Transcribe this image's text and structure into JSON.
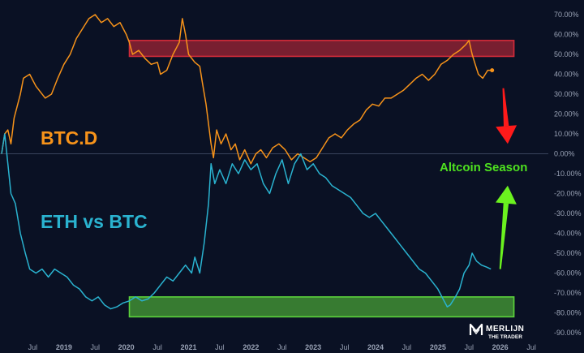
{
  "chart_data": {
    "type": "line",
    "title": "",
    "xlabel": "",
    "ylabel": "",
    "ylim": [
      -90,
      70
    ],
    "y_axis_side": "right",
    "grid": false,
    "y_ticks": [
      "70.00%",
      "60.00%",
      "50.00%",
      "40.00%",
      "30.00%",
      "20.00%",
      "10.00%",
      "0.00%",
      "-10.00%",
      "-20.00%",
      "-30.00%",
      "-40.00%",
      "-50.00%",
      "-60.00%",
      "-70.00%",
      "-80.00%",
      "-90.00%"
    ],
    "x_ticks": [
      {
        "label": "Jul",
        "x": 2018.5,
        "year": false
      },
      {
        "label": "2019",
        "x": 2019.0,
        "year": true
      },
      {
        "label": "Jul",
        "x": 2019.5,
        "year": false
      },
      {
        "label": "2020",
        "x": 2020.0,
        "year": true
      },
      {
        "label": "Jul",
        "x": 2020.5,
        "year": false
      },
      {
        "label": "2021",
        "x": 2021.0,
        "year": true
      },
      {
        "label": "Jul",
        "x": 2021.5,
        "year": false
      },
      {
        "label": "2022",
        "x": 2022.0,
        "year": true
      },
      {
        "label": "Jul",
        "x": 2022.5,
        "year": false
      },
      {
        "label": "2023",
        "x": 2023.0,
        "year": true
      },
      {
        "label": "Jul",
        "x": 2023.5,
        "year": false
      },
      {
        "label": "2024",
        "x": 2024.0,
        "year": true
      },
      {
        "label": "Jul",
        "x": 2024.5,
        "year": false
      },
      {
        "label": "2025",
        "x": 2025.0,
        "year": true
      },
      {
        "label": "Jul",
        "x": 2025.5,
        "year": false
      },
      {
        "label": "2026",
        "x": 2026.0,
        "year": true
      },
      {
        "label": "Jul",
        "x": 2026.5,
        "year": false
      }
    ],
    "zero_line": 0,
    "series": [
      {
        "name": "BTC.D",
        "color": "#f7931a",
        "points": [
          [
            2018.0,
            0
          ],
          [
            2018.05,
            10
          ],
          [
            2018.1,
            12
          ],
          [
            2018.15,
            5
          ],
          [
            2018.2,
            18
          ],
          [
            2018.3,
            30
          ],
          [
            2018.35,
            38
          ],
          [
            2018.45,
            40
          ],
          [
            2018.55,
            34
          ],
          [
            2018.7,
            28
          ],
          [
            2018.8,
            30
          ],
          [
            2018.9,
            38
          ],
          [
            2019.0,
            45
          ],
          [
            2019.1,
            50
          ],
          [
            2019.2,
            58
          ],
          [
            2019.3,
            63
          ],
          [
            2019.4,
            68
          ],
          [
            2019.5,
            70
          ],
          [
            2019.6,
            66
          ],
          [
            2019.7,
            68
          ],
          [
            2019.8,
            64
          ],
          [
            2019.9,
            66
          ],
          [
            2020.0,
            60
          ],
          [
            2020.05,
            56
          ],
          [
            2020.1,
            50
          ],
          [
            2020.2,
            52
          ],
          [
            2020.3,
            48
          ],
          [
            2020.4,
            45
          ],
          [
            2020.5,
            46
          ],
          [
            2020.55,
            40
          ],
          [
            2020.65,
            42
          ],
          [
            2020.75,
            50
          ],
          [
            2020.85,
            56
          ],
          [
            2020.9,
            68
          ],
          [
            2020.95,
            60
          ],
          [
            2021.0,
            50
          ],
          [
            2021.1,
            46
          ],
          [
            2021.18,
            44
          ],
          [
            2021.22,
            36
          ],
          [
            2021.28,
            25
          ],
          [
            2021.32,
            15
          ],
          [
            2021.36,
            5
          ],
          [
            2021.4,
            -2
          ],
          [
            2021.45,
            12
          ],
          [
            2021.52,
            5
          ],
          [
            2021.6,
            10
          ],
          [
            2021.68,
            2
          ],
          [
            2021.75,
            5
          ],
          [
            2021.82,
            -3
          ],
          [
            2021.9,
            2
          ],
          [
            2022.0,
            -5
          ],
          [
            2022.08,
            0
          ],
          [
            2022.16,
            2
          ],
          [
            2022.25,
            -2
          ],
          [
            2022.35,
            3
          ],
          [
            2022.45,
            5
          ],
          [
            2022.55,
            2
          ],
          [
            2022.65,
            -3
          ],
          [
            2022.75,
            0
          ],
          [
            2022.85,
            -2
          ],
          [
            2022.95,
            -4
          ],
          [
            2023.05,
            -2
          ],
          [
            2023.15,
            3
          ],
          [
            2023.25,
            8
          ],
          [
            2023.35,
            10
          ],
          [
            2023.45,
            8
          ],
          [
            2023.55,
            12
          ],
          [
            2023.65,
            15
          ],
          [
            2023.75,
            17
          ],
          [
            2023.85,
            22
          ],
          [
            2023.95,
            25
          ],
          [
            2024.05,
            24
          ],
          [
            2024.15,
            28
          ],
          [
            2024.25,
            28
          ],
          [
            2024.35,
            30
          ],
          [
            2024.45,
            32
          ],
          [
            2024.55,
            35
          ],
          [
            2024.65,
            38
          ],
          [
            2024.75,
            40
          ],
          [
            2024.85,
            37
          ],
          [
            2024.95,
            40
          ],
          [
            2025.05,
            45
          ],
          [
            2025.15,
            47
          ],
          [
            2025.25,
            50
          ],
          [
            2025.35,
            52
          ],
          [
            2025.45,
            55
          ],
          [
            2025.5,
            57
          ],
          [
            2025.55,
            50
          ],
          [
            2025.6,
            45
          ],
          [
            2025.65,
            40
          ],
          [
            2025.72,
            38
          ],
          [
            2025.8,
            42
          ],
          [
            2025.87,
            42
          ]
        ]
      },
      {
        "name": "ETH vs BTC",
        "color": "#2ab3d0",
        "points": [
          [
            2018.0,
            0
          ],
          [
            2018.05,
            10
          ],
          [
            2018.1,
            -5
          ],
          [
            2018.15,
            -20
          ],
          [
            2018.22,
            -25
          ],
          [
            2018.3,
            -40
          ],
          [
            2018.38,
            -50
          ],
          [
            2018.45,
            -58
          ],
          [
            2018.55,
            -60
          ],
          [
            2018.65,
            -58
          ],
          [
            2018.75,
            -62
          ],
          [
            2018.85,
            -58
          ],
          [
            2018.95,
            -60
          ],
          [
            2019.05,
            -62
          ],
          [
            2019.15,
            -66
          ],
          [
            2019.25,
            -68
          ],
          [
            2019.35,
            -72
          ],
          [
            2019.45,
            -74
          ],
          [
            2019.55,
            -72
          ],
          [
            2019.65,
            -76
          ],
          [
            2019.75,
            -78
          ],
          [
            2019.85,
            -77
          ],
          [
            2019.95,
            -75
          ],
          [
            2020.05,
            -74
          ],
          [
            2020.15,
            -72
          ],
          [
            2020.25,
            -74
          ],
          [
            2020.35,
            -73
          ],
          [
            2020.45,
            -70
          ],
          [
            2020.55,
            -66
          ],
          [
            2020.65,
            -62
          ],
          [
            2020.75,
            -64
          ],
          [
            2020.85,
            -60
          ],
          [
            2020.95,
            -56
          ],
          [
            2021.05,
            -60
          ],
          [
            2021.1,
            -52
          ],
          [
            2021.18,
            -60
          ],
          [
            2021.25,
            -45
          ],
          [
            2021.32,
            -25
          ],
          [
            2021.36,
            -5
          ],
          [
            2021.42,
            -15
          ],
          [
            2021.5,
            -8
          ],
          [
            2021.6,
            -15
          ],
          [
            2021.7,
            -5
          ],
          [
            2021.8,
            -10
          ],
          [
            2021.9,
            -3
          ],
          [
            2022.0,
            -8
          ],
          [
            2022.1,
            -5
          ],
          [
            2022.2,
            -15
          ],
          [
            2022.3,
            -20
          ],
          [
            2022.4,
            -10
          ],
          [
            2022.5,
            -3
          ],
          [
            2022.6,
            -15
          ],
          [
            2022.7,
            -5
          ],
          [
            2022.8,
            0
          ],
          [
            2022.9,
            -8
          ],
          [
            2023.0,
            -5
          ],
          [
            2023.1,
            -10
          ],
          [
            2023.2,
            -12
          ],
          [
            2023.3,
            -16
          ],
          [
            2023.4,
            -18
          ],
          [
            2023.5,
            -20
          ],
          [
            2023.6,
            -22
          ],
          [
            2023.7,
            -26
          ],
          [
            2023.8,
            -30
          ],
          [
            2023.9,
            -32
          ],
          [
            2024.0,
            -30
          ],
          [
            2024.1,
            -34
          ],
          [
            2024.2,
            -38
          ],
          [
            2024.3,
            -42
          ],
          [
            2024.4,
            -46
          ],
          [
            2024.5,
            -50
          ],
          [
            2024.6,
            -54
          ],
          [
            2024.7,
            -58
          ],
          [
            2024.8,
            -60
          ],
          [
            2024.9,
            -64
          ],
          [
            2025.0,
            -68
          ],
          [
            2025.1,
            -74
          ],
          [
            2025.15,
            -77
          ],
          [
            2025.2,
            -76
          ],
          [
            2025.28,
            -72
          ],
          [
            2025.35,
            -68
          ],
          [
            2025.42,
            -60
          ],
          [
            2025.5,
            -56
          ],
          [
            2025.55,
            -50
          ],
          [
            2025.62,
            -54
          ],
          [
            2025.7,
            -56
          ],
          [
            2025.78,
            -57
          ],
          [
            2025.85,
            -58
          ]
        ]
      }
    ],
    "zones": [
      {
        "color": "#d42b3a",
        "x0": 2020.05,
        "x1": 2026.22,
        "y0": 49,
        "y1": 57
      },
      {
        "color": "#5cd43c",
        "x0": 2020.05,
        "x1": 2026.22,
        "y0": -82,
        "y1": -72
      }
    ],
    "arrows": [
      {
        "color": "#ff1a1a",
        "x0": 2026.05,
        "y0": 33,
        "x1": 2026.12,
        "y1": 5
      },
      {
        "color": "#6bf21f",
        "x0": 2026.0,
        "y0": -58,
        "x1": 2026.12,
        "y1": -16
      }
    ],
    "annotations": {
      "btc_d": {
        "text": "BTC.D",
        "color": "#f7931a"
      },
      "eth_btc": {
        "text": "ETH vs BTC",
        "color": "#2ab3d0"
      },
      "altcoin": {
        "text": "Altcoin Season",
        "color": "#4ee21f"
      }
    }
  },
  "branding": {
    "logo_line1": "MERLIJN",
    "logo_line2": "THE TRADER"
  }
}
